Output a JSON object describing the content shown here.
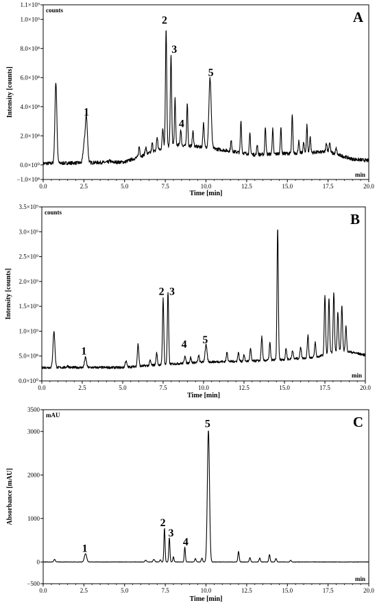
{
  "chart_data": [
    {
      "type": "line",
      "panel_label": "A",
      "y_unit_label": "counts",
      "x_unit_label": "min",
      "xlabel": "Time [min]",
      "ylabel": "Intensity [counts]",
      "xlim": [
        0,
        20
      ],
      "ylim": [
        -100000000,
        1100000000
      ],
      "x_ticks": [
        "0.0",
        "2.5",
        "5.0",
        "7.5",
        "10.0",
        "12.5",
        "15.0",
        "17.5",
        "20.0"
      ],
      "y_ticks": [
        {
          "value": -100000000,
          "label": "−1.0×10⁸"
        },
        {
          "value": 0,
          "label": "0.0×10⁰"
        },
        {
          "value": 200000000,
          "label": "2.0×10⁸"
        },
        {
          "value": 400000000,
          "label": "4.0×10⁸"
        },
        {
          "value": 600000000,
          "label": "6.0×10⁸"
        },
        {
          "value": 800000000,
          "label": "8.0×10⁸"
        },
        {
          "value": 1000000000,
          "label": "1.0×10⁹"
        },
        {
          "value": 1100000000,
          "label": "1.1×10⁹"
        }
      ],
      "baseline": 10000000,
      "noise": 12000000,
      "drift": [
        [
          0,
          10000000
        ],
        [
          5,
          20000000
        ],
        [
          6,
          60000000
        ],
        [
          8,
          140000000
        ],
        [
          10,
          120000000
        ],
        [
          13,
          70000000
        ],
        [
          17.5,
          90000000
        ],
        [
          19,
          40000000
        ],
        [
          20,
          30000000
        ]
      ],
      "peaks": [
        {
          "t": 0.78,
          "h": 555000000,
          "w": 0.06
        },
        {
          "t": 2.65,
          "h": 320000000,
          "w": 0.07
        },
        {
          "t": 2.5,
          "h": 100000000,
          "w": 0.06
        },
        {
          "t": 4.1,
          "h": 10000000,
          "w": 0.05
        },
        {
          "t": 5.9,
          "h": 70000000,
          "w": 0.04
        },
        {
          "t": 6.3,
          "h": 50000000,
          "w": 0.04
        },
        {
          "t": 6.7,
          "h": 60000000,
          "w": 0.04
        },
        {
          "t": 7.0,
          "h": 90000000,
          "w": 0.04
        },
        {
          "t": 7.35,
          "h": 140000000,
          "w": 0.04
        },
        {
          "t": 7.55,
          "h": 820000000,
          "w": 0.04
        },
        {
          "t": 7.85,
          "h": 620000000,
          "w": 0.04
        },
        {
          "t": 8.1,
          "h": 320000000,
          "w": 0.035
        },
        {
          "t": 8.45,
          "h": 110000000,
          "w": 0.035
        },
        {
          "t": 8.85,
          "h": 300000000,
          "w": 0.035
        },
        {
          "t": 9.2,
          "h": 100000000,
          "w": 0.04
        },
        {
          "t": 9.85,
          "h": 170000000,
          "w": 0.04
        },
        {
          "t": 10.25,
          "h": 480000000,
          "w": 0.07
        },
        {
          "t": 11.55,
          "h": 70000000,
          "w": 0.04
        },
        {
          "t": 12.15,
          "h": 220000000,
          "w": 0.035
        },
        {
          "t": 12.7,
          "h": 140000000,
          "w": 0.035
        },
        {
          "t": 13.15,
          "h": 70000000,
          "w": 0.035
        },
        {
          "t": 13.65,
          "h": 190000000,
          "w": 0.035
        },
        {
          "t": 14.1,
          "h": 170000000,
          "w": 0.035
        },
        {
          "t": 14.6,
          "h": 180000000,
          "w": 0.035
        },
        {
          "t": 15.3,
          "h": 260000000,
          "w": 0.035
        },
        {
          "t": 15.7,
          "h": 80000000,
          "w": 0.035
        },
        {
          "t": 16.0,
          "h": 70000000,
          "w": 0.035
        },
        {
          "t": 16.2,
          "h": 190000000,
          "w": 0.035
        },
        {
          "t": 16.4,
          "h": 110000000,
          "w": 0.035
        },
        {
          "t": 17.4,
          "h": 60000000,
          "w": 0.04
        },
        {
          "t": 17.6,
          "h": 70000000,
          "w": 0.04
        },
        {
          "t": 18.0,
          "h": 40000000,
          "w": 0.04
        }
      ],
      "peak_labels": [
        {
          "text": "1",
          "x": 2.65,
          "y": 340000000
        },
        {
          "text": "2",
          "x": 7.45,
          "y": 970000000
        },
        {
          "text": "3",
          "x": 8.05,
          "y": 770000000
        },
        {
          "text": "4",
          "x": 8.5,
          "y": 260000000
        },
        {
          "text": "5",
          "x": 10.3,
          "y": 610000000
        }
      ]
    },
    {
      "type": "line",
      "panel_label": "B",
      "y_unit_label": "counts",
      "x_unit_label": "min",
      "xlabel": "Time [min]",
      "ylabel": "Intensity [counts]",
      "xlim": [
        0,
        20
      ],
      "ylim": [
        0,
        3500000000
      ],
      "x_ticks": [
        "0.0",
        "2.5",
        "5.0",
        "7.5",
        "10.0",
        "12.5",
        "15.0",
        "17.5",
        "20.0"
      ],
      "y_ticks": [
        {
          "value": 0,
          "label": "0.0×10⁰"
        },
        {
          "value": 500000000,
          "label": "5.0×10⁸"
        },
        {
          "value": 1000000000,
          "label": "1.0×10⁹"
        },
        {
          "value": 1500000000,
          "label": "1.5×10⁹"
        },
        {
          "value": 2000000000,
          "label": "2.0×10⁹"
        },
        {
          "value": 2500000000,
          "label": "2.5×10⁹"
        },
        {
          "value": 3000000000,
          "label": "3.0×10⁹"
        },
        {
          "value": 3500000000,
          "label": "3.5×10⁹"
        }
      ],
      "baseline": 270000000,
      "noise": 25000000,
      "drift": [
        [
          0,
          270000000
        ],
        [
          5,
          270000000
        ],
        [
          7,
          320000000
        ],
        [
          10,
          380000000
        ],
        [
          13,
          400000000
        ],
        [
          15,
          430000000
        ],
        [
          17,
          480000000
        ],
        [
          18.5,
          620000000
        ],
        [
          20,
          520000000
        ]
      ],
      "peaks": [
        {
          "t": 0.75,
          "h": 720000000,
          "w": 0.06
        },
        {
          "t": 1.6,
          "h": 30000000,
          "w": 0.06
        },
        {
          "t": 2.7,
          "h": 200000000,
          "w": 0.06
        },
        {
          "t": 5.2,
          "h": 130000000,
          "w": 0.05
        },
        {
          "t": 5.95,
          "h": 450000000,
          "w": 0.045
        },
        {
          "t": 6.7,
          "h": 100000000,
          "w": 0.04
        },
        {
          "t": 7.1,
          "h": 240000000,
          "w": 0.04
        },
        {
          "t": 7.5,
          "h": 1330000000,
          "w": 0.04
        },
        {
          "t": 7.8,
          "h": 1450000000,
          "w": 0.04
        },
        {
          "t": 8.85,
          "h": 160000000,
          "w": 0.04
        },
        {
          "t": 9.2,
          "h": 110000000,
          "w": 0.04
        },
        {
          "t": 9.7,
          "h": 140000000,
          "w": 0.04
        },
        {
          "t": 10.15,
          "h": 340000000,
          "w": 0.06
        },
        {
          "t": 11.45,
          "h": 200000000,
          "w": 0.04
        },
        {
          "t": 12.15,
          "h": 180000000,
          "w": 0.04
        },
        {
          "t": 12.5,
          "h": 120000000,
          "w": 0.04
        },
        {
          "t": 12.9,
          "h": 250000000,
          "w": 0.04
        },
        {
          "t": 13.6,
          "h": 480000000,
          "w": 0.04
        },
        {
          "t": 14.1,
          "h": 350000000,
          "w": 0.04
        },
        {
          "t": 14.58,
          "h": 2650000000,
          "w": 0.04
        },
        {
          "t": 15.1,
          "h": 220000000,
          "w": 0.04
        },
        {
          "t": 15.5,
          "h": 180000000,
          "w": 0.04
        },
        {
          "t": 16.0,
          "h": 240000000,
          "w": 0.04
        },
        {
          "t": 16.45,
          "h": 450000000,
          "w": 0.04
        },
        {
          "t": 16.9,
          "h": 300000000,
          "w": 0.04
        },
        {
          "t": 17.5,
          "h": 1200000000,
          "w": 0.04
        },
        {
          "t": 17.75,
          "h": 1100000000,
          "w": 0.04
        },
        {
          "t": 18.05,
          "h": 1200000000,
          "w": 0.04
        },
        {
          "t": 18.3,
          "h": 800000000,
          "w": 0.04
        },
        {
          "t": 18.55,
          "h": 900000000,
          "w": 0.04
        },
        {
          "t": 18.8,
          "h": 500000000,
          "w": 0.04
        }
      ],
      "peak_labels": [
        {
          "text": "1",
          "x": 2.6,
          "y": 530000000
        },
        {
          "text": "2",
          "x": 7.4,
          "y": 1730000000
        },
        {
          "text": "3",
          "x": 8.05,
          "y": 1730000000
        },
        {
          "text": "4",
          "x": 8.8,
          "y": 670000000
        },
        {
          "text": "5",
          "x": 10.1,
          "y": 760000000
        }
      ]
    },
    {
      "type": "line",
      "panel_label": "C",
      "y_unit_label": "mAU",
      "x_unit_label": "min",
      "xlabel": "Time [min]",
      "ylabel": "Absorbance [mAU]",
      "xlim": [
        0,
        20
      ],
      "ylim": [
        -500,
        3500
      ],
      "x_ticks": [
        "0.0",
        "2.5",
        "5.0",
        "7.5",
        "10.0",
        "12.5",
        "15.0",
        "17.5",
        "20.0"
      ],
      "y_ticks": [
        {
          "value": -500,
          "label": "−500"
        },
        {
          "value": 0,
          "label": "0"
        },
        {
          "value": 1000,
          "label": "1000"
        },
        {
          "value": 2000,
          "label": "2000"
        },
        {
          "value": 3000,
          "label": "3000"
        },
        {
          "value": 3500,
          "label": "3500"
        }
      ],
      "baseline": 0,
      "noise": 4,
      "drift": [
        [
          0,
          0
        ],
        [
          20,
          0
        ]
      ],
      "peaks": [
        {
          "t": 0.7,
          "h": 60,
          "w": 0.05
        },
        {
          "t": 2.6,
          "h": 190,
          "w": 0.07
        },
        {
          "t": 6.3,
          "h": 40,
          "w": 0.05
        },
        {
          "t": 6.8,
          "h": 60,
          "w": 0.05
        },
        {
          "t": 7.2,
          "h": 50,
          "w": 0.04
        },
        {
          "t": 7.45,
          "h": 780,
          "w": 0.035
        },
        {
          "t": 7.75,
          "h": 560,
          "w": 0.035
        },
        {
          "t": 8.0,
          "h": 120,
          "w": 0.035
        },
        {
          "t": 8.7,
          "h": 340,
          "w": 0.035
        },
        {
          "t": 9.35,
          "h": 80,
          "w": 0.04
        },
        {
          "t": 9.75,
          "h": 90,
          "w": 0.04
        },
        {
          "t": 10.15,
          "h": 3030,
          "w": 0.065
        },
        {
          "t": 12.0,
          "h": 240,
          "w": 0.04
        },
        {
          "t": 12.7,
          "h": 100,
          "w": 0.04
        },
        {
          "t": 13.3,
          "h": 90,
          "w": 0.04
        },
        {
          "t": 13.9,
          "h": 170,
          "w": 0.04
        },
        {
          "t": 14.3,
          "h": 80,
          "w": 0.04
        },
        {
          "t": 15.2,
          "h": 40,
          "w": 0.04
        }
      ],
      "peak_labels": [
        {
          "text": "1",
          "x": 2.55,
          "y": 230
        },
        {
          "text": "2",
          "x": 7.35,
          "y": 820
        },
        {
          "text": "3",
          "x": 7.85,
          "y": 590
        },
        {
          "text": "4",
          "x": 8.75,
          "y": 380
        },
        {
          "text": "5",
          "x": 10.1,
          "y": 3100
        }
      ]
    }
  ]
}
